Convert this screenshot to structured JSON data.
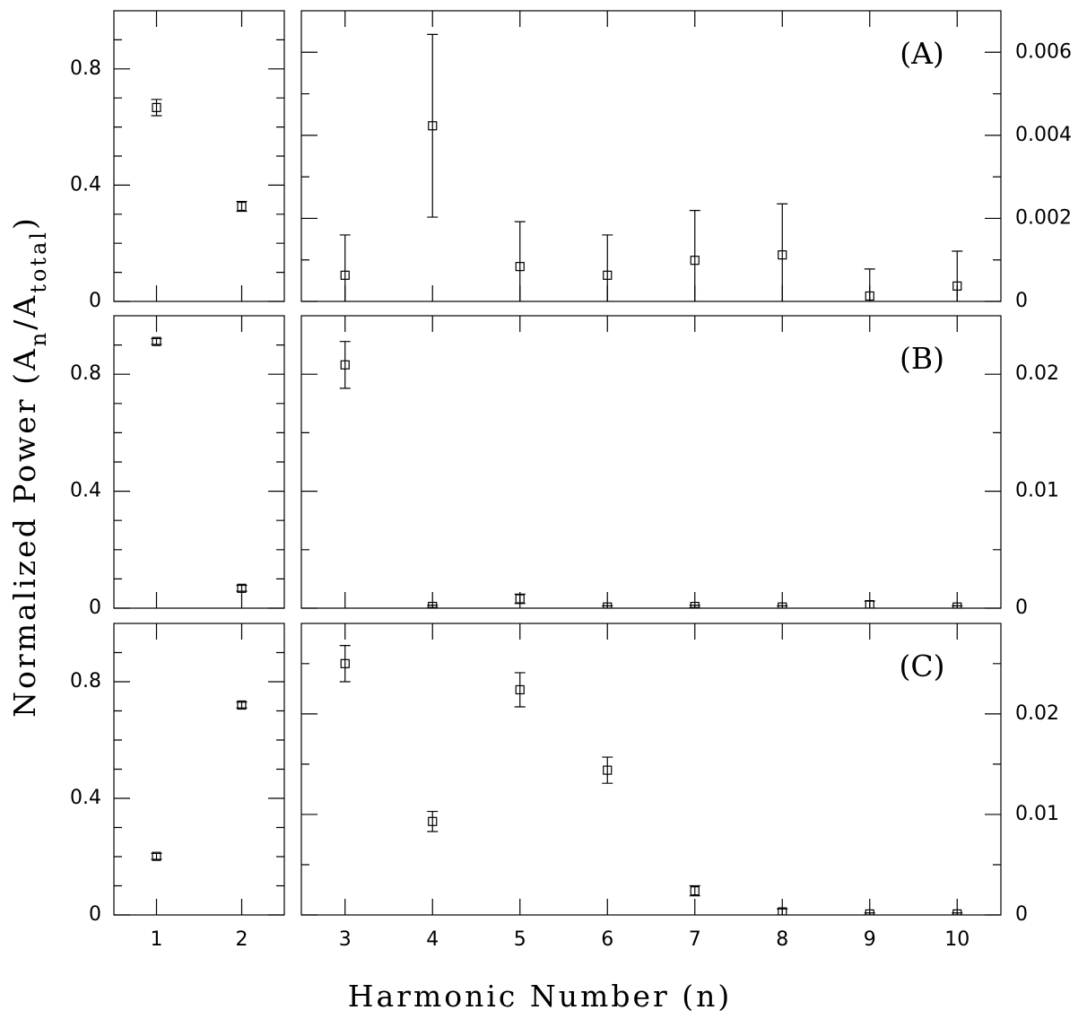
{
  "figure": {
    "xlabel": "Harmonic Number (n)",
    "ylabel_parts": [
      {
        "text": "Normalized Power (A"
      },
      {
        "text": "n",
        "sub": true
      },
      {
        "text": "/A"
      },
      {
        "text": "total",
        "sub": true
      },
      {
        "text": ")"
      }
    ]
  },
  "chart_data": [
    {
      "type": "scatter",
      "x": [
        1,
        2
      ],
      "values": [
        0.667,
        0.327
      ],
      "errors": [
        0.028,
        0.017
      ],
      "xlim": [
        0.5,
        2.5
      ],
      "xticks": [
        1,
        2
      ],
      "show_xtick_labels": false,
      "ylim": [
        0,
        1
      ],
      "yticks": [
        0,
        0.4,
        0.8
      ],
      "yminorticks": [
        0.1,
        0.2,
        0.3,
        0.5,
        0.6,
        0.7,
        0.9
      ],
      "yaxis_side": "left",
      "color": "#000000"
    },
    {
      "type": "scatter",
      "annotation": "(A)",
      "x": [
        3,
        4,
        5,
        6,
        7,
        8,
        9,
        10
      ],
      "values": [
        0.00063,
        0.00423,
        0.00084,
        0.00063,
        0.00099,
        0.00112,
        0.00013,
        0.00037
      ],
      "errors": [
        0.00097,
        0.0022,
        0.00108,
        0.00097,
        0.0012,
        0.00123,
        0.00065,
        0.00084
      ],
      "xlim": [
        2.5,
        10.5
      ],
      "xticks": [
        3,
        4,
        5,
        6,
        7,
        8,
        9,
        10
      ],
      "show_xtick_labels": false,
      "ylim": [
        0,
        0.007
      ],
      "yticks": [
        0,
        0.002,
        0.004,
        0.006
      ],
      "yminorticks": [
        0.001,
        0.003,
        0.005
      ],
      "yaxis_side": "right",
      "color": "#000000"
    },
    {
      "type": "scatter",
      "x": [
        1,
        2
      ],
      "values": [
        0.912,
        0.068
      ],
      "errors": [
        0.01,
        0.01
      ],
      "xlim": [
        0.5,
        2.5
      ],
      "xticks": [
        1,
        2
      ],
      "show_xtick_labels": false,
      "ylim": [
        0,
        1
      ],
      "yticks": [
        0,
        0.4,
        0.8
      ],
      "yminorticks": [
        0.1,
        0.2,
        0.3,
        0.5,
        0.6,
        0.7,
        0.9
      ],
      "yaxis_side": "left",
      "color": "#000000"
    },
    {
      "type": "scatter",
      "annotation": "(B)",
      "x": [
        3,
        4,
        5,
        6,
        7,
        8,
        9,
        10
      ],
      "values": [
        0.0208,
        0.00015,
        0.0008,
        0.0001,
        0.00015,
        0.0001,
        0.0003,
        0.0001
      ],
      "errors": [
        0.002,
        0.0001,
        0.0004,
        0.0001,
        0.0001,
        0.0001,
        0.0003,
        0.0001
      ],
      "xlim": [
        2.5,
        10.5
      ],
      "xticks": [
        3,
        4,
        5,
        6,
        7,
        8,
        9,
        10
      ],
      "show_xtick_labels": false,
      "ylim": [
        0,
        0.025
      ],
      "yticks": [
        0,
        0.01,
        0.02
      ],
      "yminorticks": [
        0.005,
        0.015
      ],
      "yaxis_side": "right",
      "color": "#000000"
    },
    {
      "type": "scatter",
      "x": [
        1,
        2
      ],
      "values": [
        0.201,
        0.72
      ],
      "errors": [
        0.01,
        0.01
      ],
      "xlim": [
        0.5,
        2.5
      ],
      "xticks": [
        1,
        2
      ],
      "show_xtick_labels": true,
      "ylim": [
        0,
        1
      ],
      "yticks": [
        0,
        0.4,
        0.8
      ],
      "yminorticks": [
        0.1,
        0.2,
        0.3,
        0.5,
        0.6,
        0.7,
        0.9
      ],
      "yaxis_side": "left",
      "color": "#000000"
    },
    {
      "type": "scatter",
      "annotation": "(C)",
      "x": [
        3,
        4,
        5,
        6,
        7,
        8,
        9,
        10
      ],
      "values": [
        0.025,
        0.0093,
        0.0224,
        0.0144,
        0.0024,
        0.0003,
        0.0001,
        0.0001
      ],
      "errors": [
        0.0018,
        0.001,
        0.0017,
        0.0013,
        0.0005,
        0.0003,
        0.0001,
        0.0001
      ],
      "xlim": [
        2.5,
        10.5
      ],
      "xticks": [
        3,
        4,
        5,
        6,
        7,
        8,
        9,
        10
      ],
      "show_xtick_labels": true,
      "ylim": [
        0,
        0.029
      ],
      "yticks": [
        0,
        0.01,
        0.02
      ],
      "yminorticks": [
        0.005,
        0.015,
        0.025
      ],
      "yaxis_side": "right",
      "color": "#000000"
    }
  ]
}
